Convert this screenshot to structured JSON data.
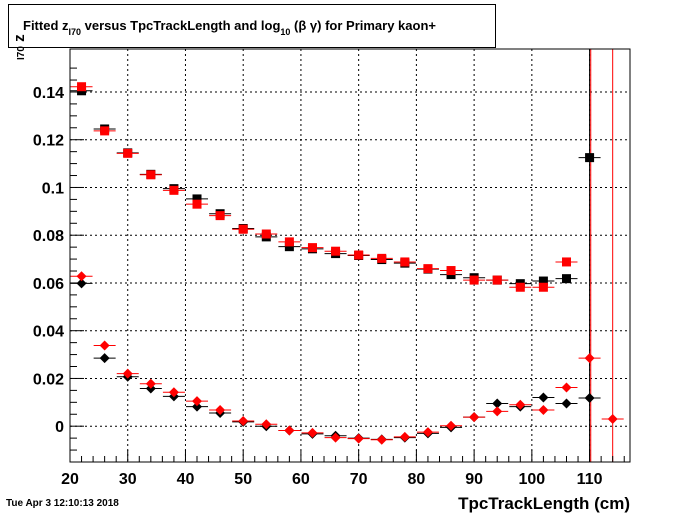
{
  "title": {
    "prefix": "Fitted  z",
    "subscript": "I70",
    "middle": " versus TpcTrackLength and log",
    "log_sub": "10",
    "suffix": " (β γ) for Primary kaon+"
  },
  "timestamp": "Tue Apr  3 12:10:13 2018",
  "chart_data": {
    "type": "scatter",
    "xlabel": "TpcTrackLength (cm)",
    "ylabel_main": "z",
    "ylabel_sub": "I70",
    "xlim": [
      20,
      117
    ],
    "ylim": [
      -0.015,
      0.158
    ],
    "x_ticks": [
      20,
      30,
      40,
      50,
      60,
      70,
      80,
      90,
      100,
      110
    ],
    "y_ticks": [
      0,
      0.02,
      0.04,
      0.06,
      0.08,
      0.1,
      0.12,
      0.14
    ],
    "y_tick_labels": [
      "0",
      "0.02",
      "0.04",
      "0.06",
      "0.08",
      "0.1",
      "0.12",
      "0.14"
    ],
    "grid": true,
    "series": [
      {
        "marker": "square",
        "color": "#000000",
        "x": [
          22,
          26,
          30,
          34,
          38,
          42,
          46,
          50,
          54,
          58,
          62,
          66,
          70,
          74,
          78,
          82,
          86,
          90,
          94,
          98,
          102,
          106,
          110
        ],
        "y": [
          0.1405,
          0.1245,
          0.1145,
          0.1055,
          0.0995,
          0.0952,
          0.089,
          0.0828,
          0.0793,
          0.0752,
          0.0743,
          0.0723,
          0.0715,
          0.0698,
          0.0683,
          0.0658,
          0.0635,
          0.0622,
          0.0612,
          0.0597,
          0.0608,
          0.0618,
          0.1125
        ]
      },
      {
        "marker": "square",
        "color": "#ff0000",
        "x": [
          22,
          26,
          30,
          34,
          38,
          42,
          46,
          50,
          54,
          58,
          62,
          66,
          70,
          74,
          78,
          82,
          86,
          90,
          94,
          98,
          102,
          106
        ],
        "y": [
          0.1422,
          0.1237,
          0.1143,
          0.1053,
          0.0988,
          0.093,
          0.0882,
          0.0825,
          0.0805,
          0.0772,
          0.0748,
          0.0733,
          0.0717,
          0.0703,
          0.0688,
          0.066,
          0.0652,
          0.0612,
          0.0612,
          0.0582,
          0.0582,
          0.0688
        ]
      },
      {
        "marker": "diamond",
        "color": "#000000",
        "x": [
          22,
          26,
          30,
          34,
          38,
          42,
          46,
          50,
          54,
          58,
          62,
          66,
          70,
          74,
          78,
          82,
          86,
          90,
          94,
          98,
          102,
          106,
          110
        ],
        "y": [
          0.0598,
          0.0285,
          0.0207,
          0.0158,
          0.0125,
          0.0082,
          0.0055,
          0.0018,
          0.0,
          -0.0018,
          -0.0032,
          -0.004,
          -0.005,
          -0.0055,
          -0.0048,
          -0.003,
          -0.0005,
          0.0038,
          0.0095,
          0.0082,
          0.012,
          0.0095,
          0.0118
        ]
      },
      {
        "marker": "diamond",
        "color": "#ff0000",
        "x": [
          22,
          26,
          30,
          34,
          38,
          42,
          46,
          50,
          54,
          58,
          62,
          66,
          70,
          74,
          78,
          82,
          86,
          90,
          94,
          98,
          102,
          106,
          110,
          114
        ],
        "y": [
          0.0628,
          0.0338,
          0.022,
          0.0178,
          0.0142,
          0.0105,
          0.0068,
          0.0022,
          0.0008,
          -0.0018,
          -0.0028,
          -0.0048,
          -0.0052,
          -0.0057,
          -0.0045,
          -0.0025,
          0.0002,
          0.0038,
          0.0062,
          0.009,
          0.0068,
          0.0162,
          0.0285,
          0.003
        ]
      }
    ],
    "vlines": [
      {
        "x": 110,
        "color": "#000000"
      },
      {
        "x": 110.2,
        "color": "#ff0000"
      },
      {
        "x": 114,
        "color": "#ff0000"
      }
    ]
  }
}
